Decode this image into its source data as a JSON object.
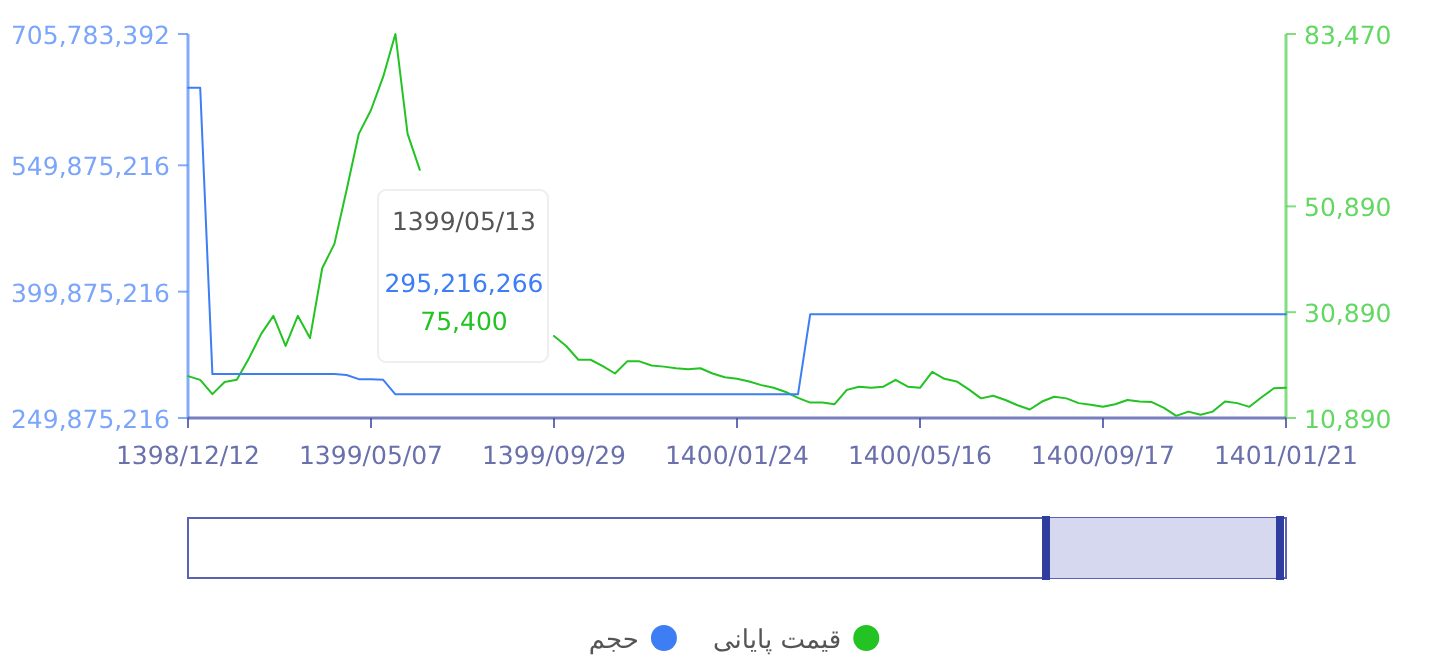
{
  "chart_data": {
    "type": "line",
    "categories": [
      "1398/12/12",
      null,
      null,
      null,
      null,
      null,
      null,
      null,
      null,
      null,
      null,
      null,
      null,
      null,
      null,
      "1399/05/07",
      null,
      null,
      null,
      null,
      null,
      null,
      null,
      null,
      null,
      null,
      null,
      null,
      null,
      null,
      "1399/09/29",
      null,
      null,
      null,
      null,
      null,
      null,
      null,
      null,
      null,
      null,
      null,
      null,
      null,
      null,
      "1400/01/24",
      null,
      null,
      null,
      null,
      null,
      null,
      null,
      null,
      null,
      null,
      null,
      null,
      null,
      null,
      "1400/05/16",
      null,
      null,
      null,
      null,
      null,
      null,
      null,
      null,
      null,
      null,
      null,
      null,
      null,
      null,
      "1400/09/17",
      null,
      null,
      null,
      null,
      null,
      null,
      null,
      null,
      null,
      null,
      null,
      null,
      null,
      null,
      "1401/01/21"
    ],
    "series": [
      {
        "name": "قیمت پایانی",
        "color": "#22c322",
        "axis": "y2",
        "values": [
          18800,
          18100,
          15400,
          17700,
          18100,
          22200,
          26800,
          30200,
          24500,
          30200,
          26000,
          39200,
          43800,
          54000,
          64600,
          69100,
          75400,
          83470,
          64600,
          57800,
          null,
          null,
          null,
          null,
          null,
          null,
          null,
          null,
          null,
          null,
          26400,
          24500,
          21900,
          21900,
          20700,
          19300,
          21600,
          21600,
          20800,
          20600,
          20300,
          20100,
          20300,
          19300,
          18600,
          18300,
          17800,
          17100,
          16600,
          15800,
          14700,
          13800,
          13800,
          13500,
          16200,
          16800,
          16600,
          16800,
          18100,
          16800,
          16600,
          19600,
          18300,
          17800,
          16300,
          14600,
          15100,
          14300,
          13300,
          12500,
          14000,
          14900,
          14600,
          13700,
          13400,
          13000,
          13500,
          14300,
          14000,
          13900,
          12800,
          11300,
          12100,
          11500,
          12100,
          14000,
          13700,
          13000,
          14800,
          16500,
          16600
        ]
      },
      {
        "name": "حجم",
        "color": "#3d7ef5",
        "axis": "y",
        "values": [
          642000000,
          642000000,
          302000000,
          302000000,
          302000000,
          302000000,
          302000000,
          302000000,
          302000000,
          302000000,
          302000000,
          302000000,
          302000000,
          301000000,
          296000000,
          296000000,
          295216266,
          278000000,
          278000000,
          278000000,
          278000000,
          278000000,
          278000000,
          278000000,
          278000000,
          278000000,
          278000000,
          278000000,
          278000000,
          278000000,
          278000000,
          278000000,
          278000000,
          278000000,
          278000000,
          278000000,
          278000000,
          278000000,
          278000000,
          278000000,
          278000000,
          278000000,
          278000000,
          278000000,
          278000000,
          278000000,
          278000000,
          278000000,
          278000000,
          278000000,
          278000000,
          373000000,
          373000000,
          373000000,
          373000000,
          373000000,
          373000000,
          373000000,
          373000000,
          373000000,
          373000000,
          373000000,
          373000000,
          373000000,
          373000000,
          373000000,
          373000000,
          373000000,
          373000000,
          373000000,
          373000000,
          373000000,
          373000000,
          373000000,
          373000000,
          373000000,
          373000000,
          373000000,
          373000000,
          373000000,
          373000000,
          373000000,
          373000000,
          373000000,
          373000000,
          373000000,
          373000000,
          373000000,
          373000000,
          373000000,
          373000000
        ]
      }
    ],
    "ylim": [
      249875216,
      705783392
    ],
    "yticks": [
      {
        "value": 249875216,
        "label": "249,875,216"
      },
      {
        "value": 399875216,
        "label": "399,875,216"
      },
      {
        "value": 549875216,
        "label": "549,875,216"
      },
      {
        "value": 705783392,
        "label": "705,783,392"
      }
    ],
    "y2lim": [
      10890,
      83470
    ],
    "y2ticks": [
      {
        "value": 10890,
        "label": "10,890"
      },
      {
        "value": 30890,
        "label": "30,890"
      },
      {
        "value": 50890,
        "label": "50,890"
      },
      {
        "value": 83470,
        "label": "83,470"
      }
    ],
    "annotations": [
      "1399/05/13",
      "295,216,266",
      "75,400"
    ],
    "legend": "bottom",
    "grid": false,
    "marker": "none",
    "line_style": "solid"
  }
}
